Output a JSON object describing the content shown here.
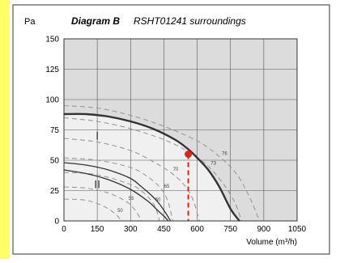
{
  "chart_data": {
    "type": "line",
    "title_bold": "Diagram B",
    "title_rest": "RSHT01241 surroundings",
    "ylabel": "Pa",
    "xlabel": "Volume (m³/h)",
    "xlim": [
      0,
      1050
    ],
    "ylim": [
      0,
      150
    ],
    "xticks": [
      0,
      150,
      300,
      450,
      600,
      750,
      900,
      1050
    ],
    "yticks": [
      0,
      25,
      50,
      75,
      100,
      125,
      150
    ],
    "grid": true,
    "colors": {
      "sidebar": "#ffff66",
      "plot_bg": "#dcdcdc",
      "region_fill": "#f0f0f0",
      "curve": "#333333",
      "noise_curve": "#999999",
      "operating_point": "#e8211c"
    },
    "regions": [
      {
        "label": "I",
        "x": 150,
        "y": 67
      },
      {
        "label": "II",
        "x": 150,
        "y": 27
      }
    ],
    "fan_curves": [
      {
        "name": "I",
        "x": [
          0,
          100,
          200,
          300,
          400,
          500,
          560,
          600,
          650,
          700,
          750,
          790
        ],
        "y": [
          88,
          88,
          86,
          82,
          76,
          67,
          59,
          52,
          42,
          28,
          10,
          0
        ],
        "style": "bold"
      },
      {
        "name": "II",
        "x": [
          0,
          100,
          200,
          300,
          350,
          400,
          430,
          460,
          480
        ],
        "y": [
          48,
          46,
          42,
          35,
          28,
          20,
          14,
          6,
          0
        ],
        "style": "medium"
      },
      {
        "name": "",
        "x": [
          0,
          100,
          200,
          300,
          380,
          420,
          450,
          470
        ],
        "y": [
          42,
          39,
          34,
          26,
          16,
          9,
          4,
          0
        ],
        "style": "medium"
      }
    ],
    "noise_curves": [
      {
        "label": "76",
        "x": [
          0,
          150,
          300,
          450,
          600,
          700,
          780,
          840,
          880
        ],
        "y": [
          95,
          93,
          87,
          78,
          66,
          53,
          38,
          18,
          0
        ]
      },
      {
        "label": "73",
        "x": [
          0,
          150,
          300,
          450,
          560,
          650,
          720,
          770,
          800
        ],
        "y": [
          85,
          82,
          76,
          67,
          57,
          45,
          30,
          15,
          0
        ]
      },
      {
        "label": "70",
        "x": [
          0,
          150,
          300,
          400,
          480,
          540,
          580,
          610
        ],
        "y": [
          68,
          65,
          58,
          49,
          40,
          30,
          18,
          0
        ]
      },
      {
        "label": "65",
        "x": [
          0,
          150,
          300,
          380,
          440,
          470,
          490
        ],
        "y": [
          52,
          50,
          44,
          36,
          26,
          15,
          0
        ]
      },
      {
        "label": "60",
        "x": [
          0,
          150,
          300,
          360,
          400,
          420,
          430
        ],
        "y": [
          40,
          38,
          30,
          23,
          15,
          7,
          0
        ]
      },
      {
        "label": "55",
        "x": [
          0,
          100,
          200,
          280,
          320,
          350
        ],
        "y": [
          28,
          27,
          23,
          16,
          9,
          0
        ]
      },
      {
        "label": "50",
        "x": [
          0,
          100,
          180,
          230,
          260
        ],
        "y": [
          18,
          17,
          12,
          6,
          0
        ]
      }
    ],
    "operating_point": {
      "x": 560,
      "y": 55
    }
  }
}
